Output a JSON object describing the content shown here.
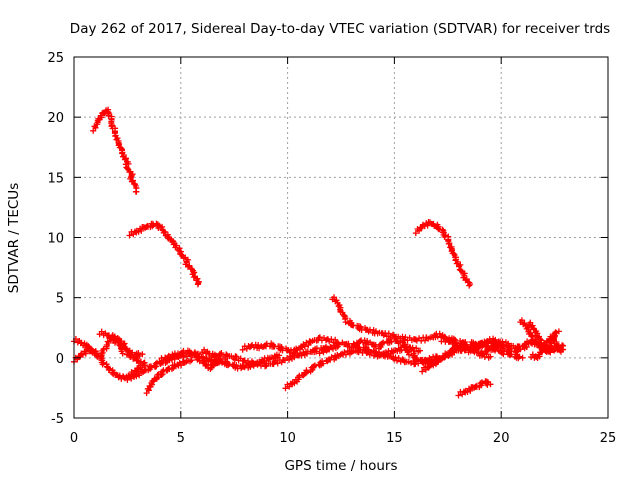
{
  "chart_data": {
    "type": "scatter",
    "title": "Day 262 of 2017, Sidereal Day-to-day VTEC variation (SDTVAR) for receiver trds",
    "xlabel": "GPS time / hours",
    "ylabel": "SDTVAR / TECUs",
    "xlim": [
      0,
      25
    ],
    "ylim": [
      -5,
      25
    ],
    "xticks": [
      0,
      5,
      10,
      15,
      20,
      25
    ],
    "yticks": [
      -5,
      0,
      5,
      10,
      15,
      20,
      25
    ],
    "grid": true,
    "marker": "+",
    "series": [
      {
        "name": "SDTVAR",
        "color": "#ff0000",
        "segments": [
          {
            "x": [
              0.9,
              1.1,
              1.3,
              1.5,
              1.7,
              1.9,
              2.1,
              2.3,
              2.5,
              2.7,
              2.9
            ],
            "y": [
              19.0,
              19.8,
              20.3,
              20.6,
              20.0,
              19.0,
              18.0,
              17.2,
              16.0,
              15.0,
              13.8
            ]
          },
          {
            "x": [
              2.6,
              2.9,
              3.2,
              3.5,
              3.8,
              4.1,
              4.4,
              4.7,
              5.0,
              5.3,
              5.6,
              5.8
            ],
            "y": [
              10.3,
              10.5,
              10.8,
              11.0,
              11.1,
              10.8,
              10.2,
              9.6,
              8.8,
              7.9,
              6.9,
              6.1
            ]
          },
          {
            "x": [
              16.0,
              16.3,
              16.6,
              16.9,
              17.2,
              17.5,
              17.7,
              17.9,
              18.1,
              18.3,
              18.5
            ],
            "y": [
              10.5,
              11.0,
              11.2,
              11.0,
              10.6,
              10.0,
              9.2,
              8.3,
              7.5,
              6.8,
              6.0
            ]
          },
          {
            "x": [
              12.1,
              12.3,
              12.5,
              12.8,
              13.2,
              13.6,
              14.0,
              14.5,
              15.0,
              15.5,
              16.0,
              16.5,
              17.0,
              17.5,
              18.0,
              18.5,
              19.0,
              19.5,
              20.0
            ],
            "y": [
              5.0,
              4.5,
              3.7,
              3.0,
              2.6,
              2.4,
              2.2,
              2.0,
              1.8,
              1.6,
              1.5,
              1.6,
              1.9,
              1.6,
              1.3,
              1.2,
              1.1,
              1.3,
              1.0
            ]
          },
          {
            "x": [
              0.0,
              0.3,
              0.6,
              0.9,
              1.2,
              1.5,
              1.8,
              2.1,
              2.4,
              2.7,
              3.0,
              3.3
            ],
            "y": [
              1.5,
              1.2,
              0.9,
              0.5,
              0.0,
              -0.6,
              -1.1,
              -1.5,
              -1.7,
              -1.4,
              -0.9,
              -0.4
            ]
          },
          {
            "x": [
              0.0,
              0.3,
              0.6,
              0.9,
              1.2,
              1.5,
              1.8,
              2.1,
              2.4,
              2.7,
              3.0,
              3.3
            ],
            "y": [
              -0.2,
              0.3,
              0.6,
              0.5,
              0.1,
              0.7,
              1.8,
              1.6,
              1.0,
              0.2,
              -0.3,
              -0.6
            ]
          },
          {
            "x": [
              1.2,
              1.6,
              2.0,
              2.4,
              2.8,
              3.2
            ],
            "y": [
              2.1,
              1.8,
              1.2,
              0.4,
              0.2,
              0.3
            ]
          },
          {
            "x": [
              2.5,
              2.8,
              3.1,
              3.4,
              3.7,
              4.0,
              4.3,
              4.6,
              4.9,
              5.2,
              5.5,
              5.8,
              6.1,
              6.4,
              6.7,
              7.0,
              7.4,
              7.8,
              8.2,
              8.6,
              9.0,
              9.4,
              9.8,
              10.2,
              10.6,
              11.0,
              11.5,
              12.0
            ],
            "y": [
              -1.7,
              -1.5,
              -1.2,
              -0.9,
              -0.7,
              -0.5,
              -0.3,
              -0.1,
              0.1,
              0.2,
              0.3,
              0.2,
              -0.1,
              -0.3,
              -0.2,
              -0.4,
              -0.6,
              -0.8,
              -0.7,
              -0.5,
              -0.6,
              -0.4,
              -0.2,
              0.1,
              0.3,
              0.5,
              0.7,
              0.9
            ]
          },
          {
            "x": [
              3.4,
              3.5,
              3.6,
              3.8,
              4.0,
              4.3,
              4.6,
              4.9,
              5.2,
              5.5
            ],
            "y": [
              -2.8,
              -2.4,
              -2.0,
              -1.6,
              -1.4,
              -1.1,
              -0.8,
              -0.6,
              -0.4,
              -0.2
            ]
          },
          {
            "x": [
              4.0,
              4.4,
              4.8,
              5.2,
              5.6,
              6.0,
              6.4,
              6.8,
              7.2,
              7.6,
              8.0,
              8.4,
              8.8,
              9.2,
              9.6
            ],
            "y": [
              -0.2,
              0.1,
              0.3,
              0.5,
              0.4,
              -0.3,
              -0.8,
              -0.4,
              0.2,
              0.0,
              -0.3,
              -0.5,
              -0.2,
              0.0,
              0.2
            ]
          },
          {
            "x": [
              6.0,
              6.3,
              6.6,
              6.9
            ],
            "y": [
              0.6,
              0.3,
              0.1,
              0.4
            ]
          },
          {
            "x": [
              7.9,
              8.3,
              8.7,
              9.1,
              9.5,
              9.9,
              10.3,
              10.7,
              11.1,
              11.5,
              11.9,
              12.3
            ],
            "y": [
              0.8,
              1.0,
              0.9,
              1.1,
              0.9,
              0.7,
              0.5,
              0.9,
              1.3,
              1.6,
              1.5,
              1.3
            ]
          },
          {
            "x": [
              9.9,
              10.2,
              10.6,
              11.0,
              11.4,
              11.8,
              12.2,
              12.6,
              13.0,
              13.4,
              13.8,
              14.2,
              14.6,
              15.0,
              15.4,
              15.8,
              16.2,
              16.6,
              17.0,
              17.4,
              17.8,
              18.2,
              18.6,
              19.0,
              19.4,
              19.8,
              20.2,
              20.6,
              21.0
            ],
            "y": [
              -2.4,
              -2.1,
              -1.5,
              -1.0,
              -0.6,
              -0.3,
              0.0,
              0.3,
              0.5,
              0.6,
              0.4,
              0.2,
              0.4,
              0.6,
              0.8,
              0.3,
              -0.2,
              -0.4,
              -0.3,
              0.1,
              0.5,
              0.7,
              0.9,
              1.1,
              0.9,
              0.6,
              0.4,
              0.2,
              0.0
            ]
          },
          {
            "x": [
              11.5,
              12.0,
              12.5,
              13.0,
              13.5,
              14.0,
              14.5,
              15.0,
              15.5,
              16.0,
              16.5,
              17.0
            ],
            "y": [
              0.5,
              0.8,
              1.2,
              1.0,
              0.8,
              0.5,
              0.3,
              0.0,
              -0.3,
              -0.4,
              -0.2,
              0.1
            ]
          },
          {
            "x": [
              13.0,
              13.4,
              13.8,
              14.2,
              14.6,
              15.0,
              15.4,
              15.8,
              16.2
            ],
            "y": [
              1.0,
              1.4,
              1.2,
              0.9,
              1.3,
              1.5,
              1.2,
              0.8,
              0.6
            ]
          },
          {
            "x": [
              16.3,
              16.7,
              17.1,
              17.5,
              17.9,
              18.3,
              18.7,
              19.1,
              19.5
            ],
            "y": [
              -1.0,
              -0.6,
              -0.1,
              0.4,
              0.8,
              1.0,
              0.7,
              0.3,
              0.1
            ]
          },
          {
            "x": [
              17.2,
              17.6,
              18.0,
              18.4,
              18.8,
              19.2,
              19.6,
              20.0,
              20.4,
              20.8,
              21.2
            ],
            "y": [
              1.5,
              1.3,
              0.9,
              0.6,
              0.8,
              1.2,
              1.5,
              1.3,
              1.1,
              0.8,
              0.9
            ]
          },
          {
            "x": [
              18.0,
              18.3,
              18.6,
              18.9,
              19.2,
              19.5
            ],
            "y": [
              -3.0,
              -2.8,
              -2.5,
              -2.3,
              -2.0,
              -2.2
            ]
          },
          {
            "x": [
              19.0,
              19.4,
              19.8,
              20.2,
              20.6,
              21.0,
              21.4,
              21.8,
              22.2,
              22.6,
              22.9
            ],
            "y": [
              0.3,
              0.7,
              1.0,
              0.8,
              0.5,
              0.9,
              1.4,
              1.0,
              0.6,
              0.9,
              0.7
            ]
          },
          {
            "x": [
              20.9,
              21.1,
              21.3,
              21.5,
              21.7,
              21.9,
              22.1,
              22.3,
              22.5,
              22.7,
              22.9
            ],
            "y": [
              3.1,
              2.6,
              2.0,
              1.5,
              1.2,
              0.9,
              0.7,
              0.5,
              0.6,
              0.8,
              1.0
            ]
          },
          {
            "x": [
              21.3,
              21.5,
              21.7,
              21.9,
              22.1,
              22.3,
              22.5,
              22.7
            ],
            "y": [
              2.9,
              2.3,
              1.7,
              1.2,
              0.8,
              0.6,
              1.8,
              2.2
            ]
          },
          {
            "x": [
              21.4,
              21.6,
              21.8,
              22.0,
              22.2,
              22.4,
              22.6,
              22.8
            ],
            "y": [
              0.2,
              0.0,
              0.4,
              1.0,
              1.5,
              1.8,
              1.3,
              0.5
            ]
          }
        ]
      }
    ]
  }
}
